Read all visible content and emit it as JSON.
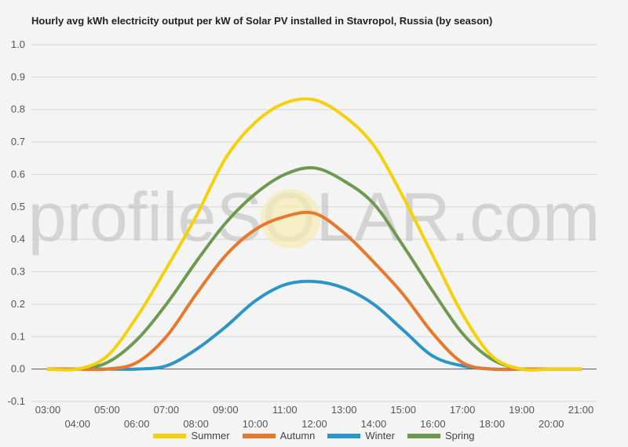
{
  "chart_data": {
    "type": "line",
    "title": "Hourly avg kWh electricity output per kW of Solar PV installed in Stavropol, Russia (by season)",
    "watermark": "profileSOLAR.com",
    "ylim": [
      -0.1,
      1.0
    ],
    "yticks": [
      "1.0",
      "0.9",
      "0.8",
      "0.7",
      "0.6",
      "0.5",
      "0.4",
      "0.3",
      "0.2",
      "0.1",
      "0.0",
      "-0.1"
    ],
    "x": [
      "03:00",
      "04:00",
      "05:00",
      "06:00",
      "07:00",
      "08:00",
      "09:00",
      "10:00",
      "11:00",
      "12:00",
      "13:00",
      "14:00",
      "15:00",
      "16:00",
      "17:00",
      "18:00",
      "19:00",
      "20:00",
      "21:00"
    ],
    "grid": true,
    "legend_position": "bottom",
    "series": [
      {
        "name": "Summer",
        "color": "#f5d10c",
        "values": [
          0.0,
          0.0,
          0.04,
          0.16,
          0.31,
          0.47,
          0.65,
          0.76,
          0.82,
          0.83,
          0.78,
          0.69,
          0.53,
          0.35,
          0.17,
          0.04,
          0.0,
          0.0,
          0.0
        ]
      },
      {
        "name": "Autumn",
        "color": "#e8782a",
        "values": [
          0.0,
          0.0,
          0.0,
          0.02,
          0.1,
          0.23,
          0.35,
          0.43,
          0.47,
          0.48,
          0.42,
          0.33,
          0.23,
          0.11,
          0.02,
          0.0,
          0.0,
          0.0,
          0.0
        ]
      },
      {
        "name": "Winter",
        "color": "#2a95c8",
        "values": [
          0.0,
          0.0,
          0.0,
          0.0,
          0.01,
          0.06,
          0.13,
          0.21,
          0.26,
          0.27,
          0.25,
          0.2,
          0.12,
          0.04,
          0.01,
          0.0,
          0.0,
          0.0,
          0.0
        ]
      },
      {
        "name": "Spring",
        "color": "#6e9a4f",
        "values": [
          0.0,
          0.0,
          0.02,
          0.09,
          0.2,
          0.33,
          0.45,
          0.54,
          0.6,
          0.62,
          0.58,
          0.51,
          0.38,
          0.24,
          0.11,
          0.03,
          0.0,
          0.0,
          0.0
        ]
      }
    ]
  }
}
